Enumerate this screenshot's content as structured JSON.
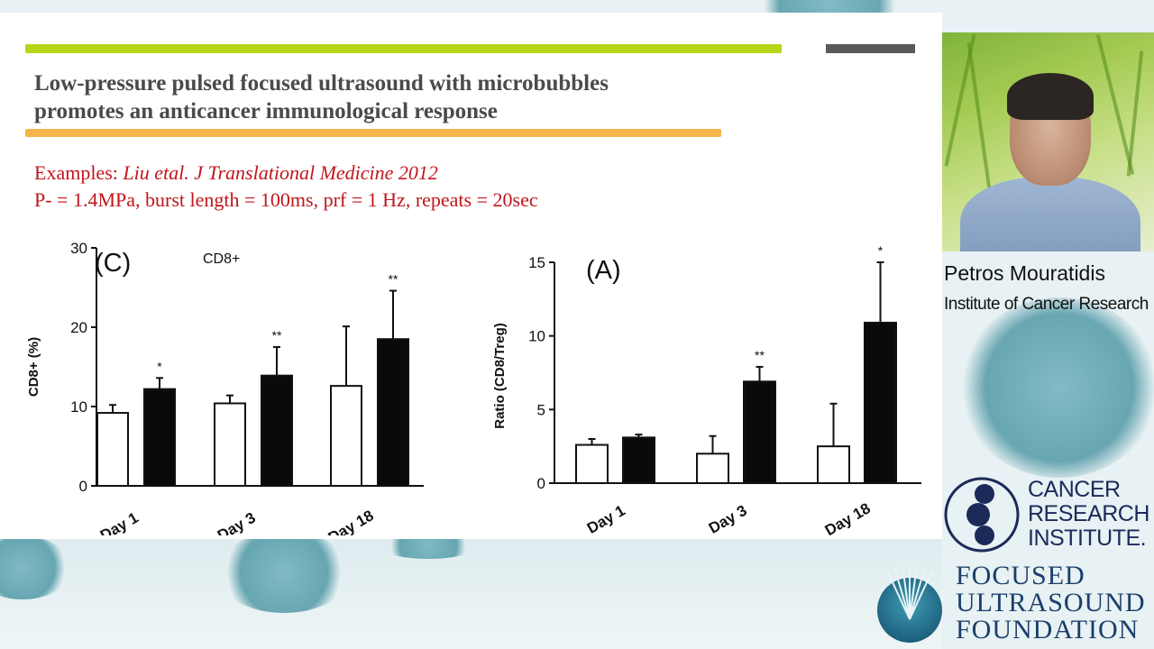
{
  "slide": {
    "title_line1": "Low-pressure pulsed focused ultrasound with microbubbles",
    "title_line2": "promotes an anticancer immunological response",
    "examples_prefix": "Examples: ",
    "examples_citation": "Liu etal. J Translational Medicine 2012",
    "params": "P- = 1.4MPa, burst length = 100ms, prf = 1 Hz, repeats = 20sec"
  },
  "colors": {
    "accent_green": "#b9d51a",
    "accent_orange": "#f4b64a",
    "text_red": "#c0161c"
  },
  "chart_data": [
    {
      "type": "bar",
      "panel_label": "(C)",
      "title": "CD8+",
      "ylabel": "CD8+ (%)",
      "ylim": [
        0,
        30
      ],
      "yticks": [
        0,
        10,
        20,
        30
      ],
      "categories": [
        "Day 1",
        "Day 3",
        "Day 18"
      ],
      "series": [
        {
          "fill": "white",
          "values": [
            9.2,
            10.4,
            12.6
          ],
          "errors": [
            1.0,
            1.0,
            7.5
          ],
          "significance": [
            "",
            "",
            ""
          ]
        },
        {
          "fill": "black",
          "values": [
            12.2,
            13.9,
            18.5
          ],
          "errors": [
            1.4,
            3.6,
            6.1
          ],
          "significance": [
            "*",
            "**",
            "**"
          ]
        }
      ]
    },
    {
      "type": "bar",
      "panel_label": "(A)",
      "ylabel": "Ratio (CD8/Treg)",
      "ylim": [
        0,
        15
      ],
      "yticks": [
        0,
        5,
        10,
        15
      ],
      "categories": [
        "Day 1",
        "Day 3",
        "Day 18"
      ],
      "series": [
        {
          "fill": "white",
          "values": [
            2.6,
            2.0,
            2.5
          ],
          "errors": [
            0.4,
            1.2,
            2.9
          ],
          "significance": [
            "",
            "",
            ""
          ]
        },
        {
          "fill": "black",
          "values": [
            3.1,
            6.9,
            10.9
          ],
          "errors": [
            0.2,
            1.0,
            4.1
          ],
          "significance": [
            "",
            "**",
            "*"
          ]
        }
      ]
    }
  ],
  "speaker": {
    "name": "Petros Mouratidis",
    "affiliation": "Institute of Cancer Research"
  },
  "logos": {
    "cri_line1": "CANCER",
    "cri_line2": "RESEARCH",
    "cri_line3": "INSTITUTE.",
    "fus_line1": "FOCUSED",
    "fus_line2": "ULTRASOUND",
    "fus_line3": "FOUNDATION"
  }
}
